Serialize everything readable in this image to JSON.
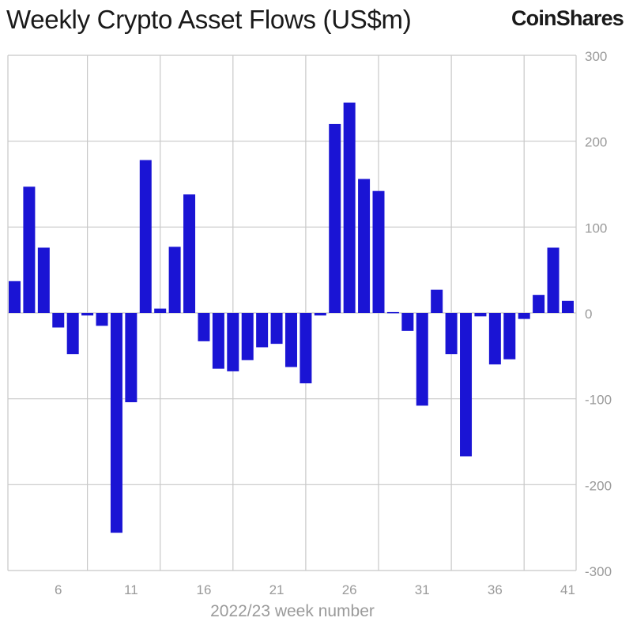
{
  "title": "Weekly Crypto Asset Flows (US$m)",
  "brand": "CoinShares",
  "colors": {
    "bar": "#1a14d4",
    "grid": "#c8c8c8",
    "tick": "#9a9a9a",
    "text": "#1a1a1a"
  },
  "chart_data": {
    "type": "bar",
    "title": "Weekly Crypto Asset Flows (US$m)",
    "xlabel": "2022/23 week number",
    "ylabel": "",
    "ylim": [
      -300,
      300
    ],
    "yticks": [
      300,
      200,
      100,
      0,
      -100,
      -200,
      -300
    ],
    "y_axis_side": "right",
    "grid": true,
    "xtick_labels": [
      "6",
      "11",
      "16",
      "21",
      "26",
      "31",
      "36",
      "41"
    ],
    "categories": [
      3,
      4,
      5,
      6,
      7,
      8,
      9,
      10,
      11,
      12,
      13,
      14,
      15,
      16,
      17,
      18,
      19,
      20,
      21,
      22,
      23,
      24,
      25,
      26,
      27,
      28,
      29,
      30,
      31,
      32,
      33,
      34,
      35,
      36,
      37,
      38,
      39,
      40,
      41
    ],
    "values": [
      37,
      147,
      76,
      -17,
      -48,
      -3,
      -15,
      -256,
      -104,
      178,
      5,
      77,
      138,
      -33,
      -65,
      -68,
      -55,
      -40,
      -36,
      -63,
      -82,
      -3,
      220,
      245,
      156,
      142,
      1,
      -21,
      -108,
      27,
      -48,
      -167,
      -4,
      -60,
      -54,
      -7,
      21,
      76,
      14
    ]
  }
}
